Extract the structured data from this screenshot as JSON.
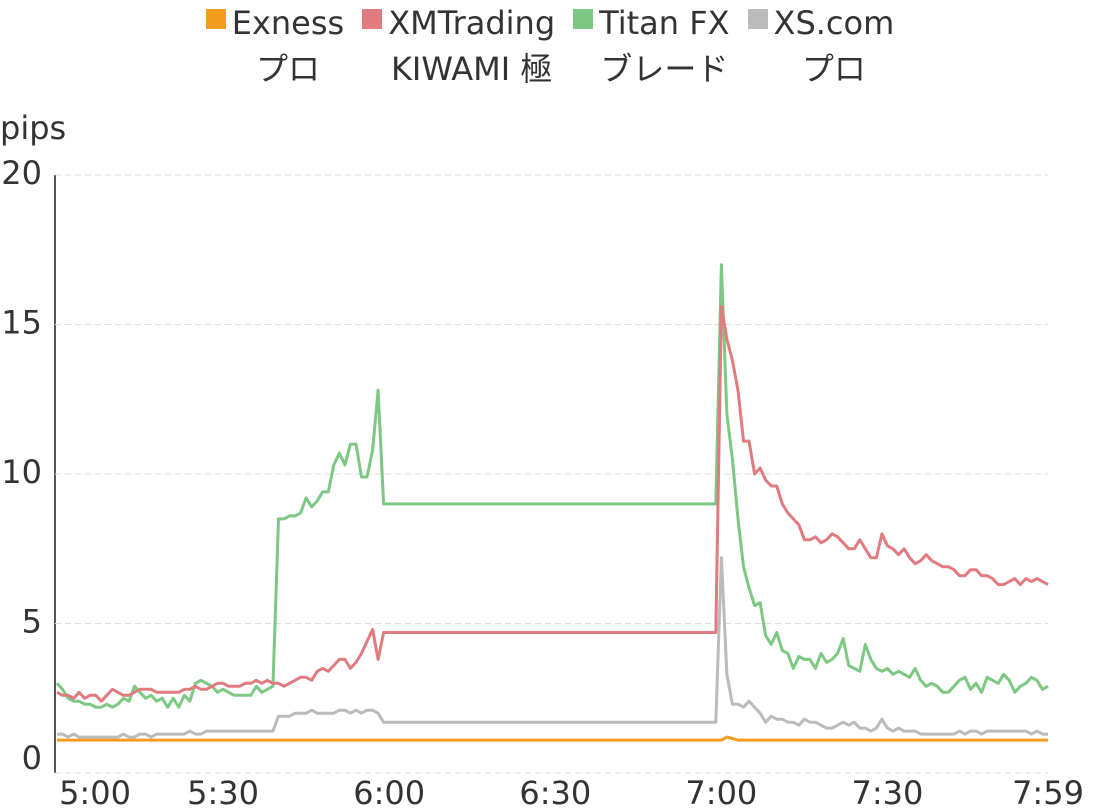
{
  "chart_data": {
    "type": "line",
    "y_label": "pips",
    "ylim": [
      0,
      20
    ],
    "yticks": [
      0,
      5,
      10,
      15,
      20
    ],
    "grid": true,
    "legend": "top",
    "categories": [
      "5:00",
      null,
      null,
      null,
      null,
      null,
      null,
      null,
      null,
      null,
      null,
      null,
      null,
      null,
      null,
      null,
      null,
      null,
      null,
      null,
      null,
      null,
      null,
      null,
      null,
      null,
      null,
      null,
      null,
      null,
      "5:30",
      null,
      null,
      null,
      null,
      null,
      null,
      null,
      null,
      null,
      null,
      null,
      null,
      null,
      null,
      null,
      null,
      null,
      null,
      null,
      null,
      null,
      null,
      null,
      null,
      null,
      null,
      null,
      null,
      null,
      "6:00",
      null,
      null,
      null,
      null,
      null,
      null,
      null,
      null,
      null,
      null,
      null,
      null,
      null,
      null,
      null,
      null,
      null,
      null,
      null,
      null,
      null,
      null,
      null,
      null,
      null,
      null,
      null,
      null,
      null,
      "6:30",
      null,
      null,
      null,
      null,
      null,
      null,
      null,
      null,
      null,
      null,
      null,
      null,
      null,
      null,
      null,
      null,
      null,
      null,
      null,
      null,
      null,
      null,
      null,
      null,
      null,
      null,
      null,
      null,
      null,
      "7:00",
      null,
      null,
      null,
      null,
      null,
      null,
      null,
      null,
      null,
      null,
      null,
      null,
      null,
      null,
      null,
      null,
      null,
      null,
      null,
      null,
      null,
      null,
      null,
      null,
      null,
      null,
      null,
      null,
      null,
      "7:30",
      null,
      null,
      null,
      null,
      null,
      null,
      null,
      null,
      null,
      null,
      null,
      null,
      null,
      null,
      null,
      null,
      null,
      null,
      null,
      null,
      null,
      null,
      null,
      null,
      null,
      null,
      null,
      null,
      "7:59"
    ],
    "series": [
      {
        "name": "Exness\nプロ",
        "color": "#f39c1f",
        "values": [
          1.1,
          1.1,
          1.1,
          1.1,
          1.1,
          1.1,
          1.1,
          1.1,
          1.1,
          1.1,
          1.1,
          1.1,
          1.1,
          1.1,
          1.1,
          1.1,
          1.1,
          1.1,
          1.1,
          1.1,
          1.1,
          1.1,
          1.1,
          1.1,
          1.1,
          1.1,
          1.1,
          1.1,
          1.1,
          1.1,
          1.1,
          1.1,
          1.1,
          1.1,
          1.1,
          1.1,
          1.1,
          1.1,
          1.1,
          1.1,
          1.1,
          1.1,
          1.1,
          1.1,
          1.1,
          1.1,
          1.1,
          1.1,
          1.1,
          1.1,
          1.1,
          1.1,
          1.1,
          1.1,
          1.1,
          1.1,
          1.1,
          1.1,
          1.1,
          1.1,
          1.1,
          1.1,
          1.1,
          1.1,
          1.1,
          1.1,
          1.1,
          1.1,
          1.1,
          1.1,
          1.1,
          1.1,
          1.1,
          1.1,
          1.1,
          1.1,
          1.1,
          1.1,
          1.1,
          1.1,
          1.1,
          1.1,
          1.1,
          1.1,
          1.1,
          1.1,
          1.1,
          1.1,
          1.1,
          1.1,
          1.1,
          1.1,
          1.1,
          1.1,
          1.1,
          1.1,
          1.1,
          1.1,
          1.1,
          1.1,
          1.1,
          1.1,
          1.1,
          1.1,
          1.1,
          1.1,
          1.1,
          1.1,
          1.1,
          1.1,
          1.1,
          1.1,
          1.1,
          1.1,
          1.1,
          1.1,
          1.1,
          1.1,
          1.1,
          1.1,
          1.1,
          1.2,
          1.15,
          1.1,
          1.1,
          1.1,
          1.1,
          1.1,
          1.1,
          1.1,
          1.1,
          1.1,
          1.1,
          1.1,
          1.1,
          1.1,
          1.1,
          1.1,
          1.1,
          1.1,
          1.1,
          1.1,
          1.1,
          1.1,
          1.1,
          1.1,
          1.1,
          1.1,
          1.1,
          1.1,
          1.1,
          1.1,
          1.1,
          1.1,
          1.1,
          1.1,
          1.1,
          1.1,
          1.1,
          1.1,
          1.1,
          1.1,
          1.1,
          1.1,
          1.1,
          1.1,
          1.1,
          1.1,
          1.1,
          1.1,
          1.1,
          1.1,
          1.1,
          1.1,
          1.1,
          1.1,
          1.1,
          1.1,
          1.1,
          1.1
        ]
      },
      {
        "name": "XMTrading\nKIWAMI 極",
        "color": "#e07b80",
        "values": [
          2.7,
          2.6,
          2.6,
          2.5,
          2.7,
          2.5,
          2.6,
          2.6,
          2.4,
          2.6,
          2.8,
          2.7,
          2.6,
          2.6,
          2.7,
          2.8,
          2.8,
          2.8,
          2.7,
          2.7,
          2.7,
          2.7,
          2.7,
          2.8,
          2.8,
          2.9,
          2.8,
          2.8,
          2.9,
          3.0,
          3.0,
          2.9,
          2.9,
          2.9,
          3.0,
          3.0,
          3.1,
          3.0,
          3.1,
          3.0,
          3.0,
          2.9,
          3.0,
          3.1,
          3.2,
          3.2,
          3.1,
          3.4,
          3.5,
          3.4,
          3.6,
          3.8,
          3.8,
          3.5,
          3.7,
          4.0,
          4.4,
          4.8,
          3.8,
          4.7,
          4.7,
          4.7,
          4.7,
          4.7,
          4.7,
          4.7,
          4.7,
          4.7,
          4.7,
          4.7,
          4.7,
          4.7,
          4.7,
          4.7,
          4.7,
          4.7,
          4.7,
          4.7,
          4.7,
          4.7,
          4.7,
          4.7,
          4.7,
          4.7,
          4.7,
          4.7,
          4.7,
          4.7,
          4.7,
          4.7,
          4.7,
          4.7,
          4.7,
          4.7,
          4.7,
          4.7,
          4.7,
          4.7,
          4.7,
          4.7,
          4.7,
          4.7,
          4.7,
          4.7,
          4.7,
          4.7,
          4.7,
          4.7,
          4.7,
          4.7,
          4.7,
          4.7,
          4.7,
          4.7,
          4.7,
          4.7,
          4.7,
          4.7,
          4.7,
          4.7,
          15.6,
          14.5,
          13.8,
          12.8,
          11.1,
          11.1,
          10.0,
          10.2,
          9.8,
          9.6,
          9.6,
          9.0,
          8.7,
          8.5,
          8.3,
          7.8,
          7.8,
          7.9,
          7.7,
          7.8,
          8.0,
          7.9,
          7.7,
          7.5,
          7.5,
          7.8,
          7.5,
          7.2,
          7.2,
          8.0,
          7.6,
          7.5,
          7.3,
          7.5,
          7.2,
          7.0,
          7.1,
          7.3,
          7.1,
          7.0,
          6.9,
          6.9,
          6.8,
          6.6,
          6.6,
          6.8,
          6.8,
          6.6,
          6.6,
          6.5,
          6.3,
          6.3,
          6.4,
          6.5,
          6.3,
          6.5,
          6.4,
          6.5,
          6.4,
          6.3
        ]
      },
      {
        "name": "Titan FX\nブレード",
        "color": "#7dc882",
        "values": [
          3.0,
          2.8,
          2.5,
          2.4,
          2.4,
          2.3,
          2.3,
          2.2,
          2.2,
          2.3,
          2.2,
          2.3,
          2.5,
          2.4,
          2.9,
          2.7,
          2.5,
          2.6,
          2.4,
          2.5,
          2.2,
          2.5,
          2.2,
          2.6,
          2.4,
          3.0,
          3.1,
          3.0,
          2.9,
          2.7,
          2.8,
          2.7,
          2.6,
          2.6,
          2.6,
          2.6,
          2.9,
          2.7,
          2.8,
          2.9,
          8.5,
          8.5,
          8.6,
          8.6,
          8.7,
          9.2,
          8.9,
          9.1,
          9.4,
          9.4,
          10.3,
          10.7,
          10.3,
          11.0,
          11.0,
          9.9,
          9.9,
          10.8,
          12.8,
          9.0,
          9.0,
          9.0,
          9.0,
          9.0,
          9.0,
          9.0,
          9.0,
          9.0,
          9.0,
          9.0,
          9.0,
          9.0,
          9.0,
          9.0,
          9.0,
          9.0,
          9.0,
          9.0,
          9.0,
          9.0,
          9.0,
          9.0,
          9.0,
          9.0,
          9.0,
          9.0,
          9.0,
          9.0,
          9.0,
          9.0,
          9.0,
          9.0,
          9.0,
          9.0,
          9.0,
          9.0,
          9.0,
          9.0,
          9.0,
          9.0,
          9.0,
          9.0,
          9.0,
          9.0,
          9.0,
          9.0,
          9.0,
          9.0,
          9.0,
          9.0,
          9.0,
          9.0,
          9.0,
          9.0,
          9.0,
          9.0,
          9.0,
          9.0,
          9.0,
          9.0,
          17.0,
          12.0,
          10.5,
          8.5,
          6.9,
          6.2,
          5.6,
          5.7,
          4.6,
          4.3,
          4.7,
          4.1,
          4.0,
          3.5,
          3.9,
          3.8,
          3.8,
          3.5,
          4.0,
          3.7,
          3.8,
          4.0,
          4.5,
          3.6,
          3.5,
          3.4,
          4.3,
          3.8,
          3.5,
          3.4,
          3.5,
          3.3,
          3.4,
          3.3,
          3.2,
          3.5,
          3.1,
          2.9,
          3.0,
          2.9,
          2.7,
          2.7,
          2.9,
          3.1,
          3.2,
          2.8,
          3.0,
          2.7,
          3.2,
          3.1,
          3.0,
          3.3,
          3.1,
          2.7,
          2.9,
          3.0,
          3.2,
          3.1,
          2.8,
          2.9
        ]
      },
      {
        "name": "XS.com\nプロ",
        "color": "#bbbbbb",
        "values": [
          1.3,
          1.3,
          1.2,
          1.3,
          1.2,
          1.2,
          1.2,
          1.2,
          1.2,
          1.2,
          1.2,
          1.2,
          1.3,
          1.2,
          1.2,
          1.3,
          1.3,
          1.2,
          1.3,
          1.3,
          1.3,
          1.3,
          1.3,
          1.3,
          1.4,
          1.3,
          1.3,
          1.4,
          1.4,
          1.4,
          1.4,
          1.4,
          1.4,
          1.4,
          1.4,
          1.4,
          1.4,
          1.4,
          1.4,
          1.4,
          1.9,
          1.9,
          1.9,
          2.0,
          2.0,
          2.0,
          2.1,
          2.0,
          2.0,
          2.0,
          2.0,
          2.1,
          2.1,
          2.0,
          2.1,
          2.0,
          2.1,
          2.1,
          2.0,
          1.7,
          1.7,
          1.7,
          1.7,
          1.7,
          1.7,
          1.7,
          1.7,
          1.7,
          1.7,
          1.7,
          1.7,
          1.7,
          1.7,
          1.7,
          1.7,
          1.7,
          1.7,
          1.7,
          1.7,
          1.7,
          1.7,
          1.7,
          1.7,
          1.7,
          1.7,
          1.7,
          1.7,
          1.7,
          1.7,
          1.7,
          1.7,
          1.7,
          1.7,
          1.7,
          1.7,
          1.7,
          1.7,
          1.7,
          1.7,
          1.7,
          1.7,
          1.7,
          1.7,
          1.7,
          1.7,
          1.7,
          1.7,
          1.7,
          1.7,
          1.7,
          1.7,
          1.7,
          1.7,
          1.7,
          1.7,
          1.7,
          1.7,
          1.7,
          1.7,
          1.7,
          7.2,
          3.3,
          2.3,
          2.3,
          2.2,
          2.4,
          2.2,
          2.0,
          1.7,
          1.9,
          1.8,
          1.8,
          1.7,
          1.7,
          1.6,
          1.8,
          1.7,
          1.7,
          1.6,
          1.5,
          1.5,
          1.6,
          1.7,
          1.6,
          1.7,
          1.5,
          1.5,
          1.4,
          1.5,
          1.8,
          1.5,
          1.4,
          1.5,
          1.4,
          1.4,
          1.4,
          1.3,
          1.3,
          1.3,
          1.3,
          1.3,
          1.3,
          1.3,
          1.4,
          1.3,
          1.4,
          1.4,
          1.3,
          1.4,
          1.4,
          1.4,
          1.4,
          1.4,
          1.4,
          1.4,
          1.4,
          1.3,
          1.4,
          1.3,
          1.3
        ]
      }
    ]
  }
}
